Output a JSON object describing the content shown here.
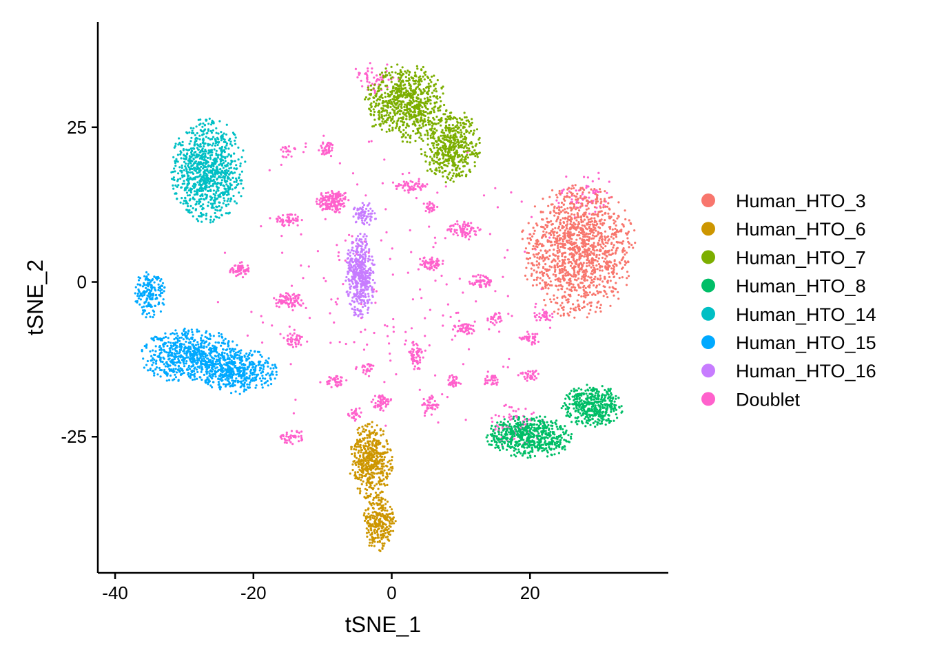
{
  "chart_data": {
    "type": "scatter",
    "title": "",
    "xlabel": "tSNE_1",
    "ylabel": "tSNE_2",
    "xlim": [
      -42.5,
      40
    ],
    "ylim": [
      -47,
      42
    ],
    "x_ticks": [
      {
        "value": -40,
        "label": "-40"
      },
      {
        "value": -20,
        "label": "-20"
      },
      {
        "value": 0,
        "label": "0"
      },
      {
        "value": 20,
        "label": "20"
      }
    ],
    "y_ticks": [
      {
        "value": 25,
        "label": "25"
      },
      {
        "value": 0,
        "label": "0"
      },
      {
        "value": -25,
        "label": "-25"
      }
    ],
    "grid": false,
    "legend_position": "right",
    "series": [
      {
        "name": "Human_HTO_3",
        "color": "#F8766D",
        "clusters": [
          {
            "cx": 27,
            "cy": 5,
            "rx": 8.5,
            "ry": 11,
            "n": 1300
          }
        ]
      },
      {
        "name": "Human_HTO_6",
        "color": "#CD9600",
        "clusters": [
          {
            "cx": -3,
            "cy": -29,
            "rx": 3.2,
            "ry": 6.5,
            "n": 480
          },
          {
            "cx": -1.8,
            "cy": -39,
            "rx": 2.5,
            "ry": 4.5,
            "n": 260
          }
        ]
      },
      {
        "name": "Human_HTO_7",
        "color": "#7CAE00",
        "clusters": [
          {
            "cx": 2,
            "cy": 29,
            "rx": 6,
            "ry": 6.5,
            "n": 700
          },
          {
            "cx": 8.5,
            "cy": 22,
            "rx": 4.5,
            "ry": 6,
            "n": 500
          }
        ]
      },
      {
        "name": "Human_HTO_8",
        "color": "#00BE67",
        "clusters": [
          {
            "cx": 20,
            "cy": -25,
            "rx": 6.5,
            "ry": 3.5,
            "n": 550
          },
          {
            "cx": 29,
            "cy": -20,
            "rx": 4.5,
            "ry": 3.5,
            "n": 420
          }
        ]
      },
      {
        "name": "Human_HTO_14",
        "color": "#00BFC4",
        "clusters": [
          {
            "cx": -26.5,
            "cy": 18,
            "rx": 5.5,
            "ry": 8.5,
            "n": 900
          }
        ]
      },
      {
        "name": "Human_HTO_15",
        "color": "#00A9FF",
        "clusters": [
          {
            "cx": -35,
            "cy": -2,
            "rx": 2.3,
            "ry": 4,
            "n": 170
          },
          {
            "cx": -29,
            "cy": -12,
            "rx": 7.5,
            "ry": 4.5,
            "n": 700
          },
          {
            "cx": -22,
            "cy": -14.5,
            "rx": 5.5,
            "ry": 3.8,
            "n": 400
          }
        ]
      },
      {
        "name": "Human_HTO_16",
        "color": "#C77CFF",
        "clusters": [
          {
            "cx": -4.5,
            "cy": 1,
            "rx": 2.2,
            "ry": 7,
            "n": 450
          },
          {
            "cx": -4,
            "cy": 11,
            "rx": 2,
            "ry": 2,
            "n": 70
          }
        ]
      },
      {
        "name": "Doublet",
        "color": "#FF61CC",
        "clusters": [
          {
            "cx": -8.5,
            "cy": 13,
            "rx": 2.5,
            "ry": 2,
            "n": 150
          },
          {
            "cx": -15,
            "cy": 10,
            "rx": 2,
            "ry": 1.2,
            "n": 50
          },
          {
            "cx": -22,
            "cy": 2,
            "rx": 1.5,
            "ry": 1.3,
            "n": 60
          },
          {
            "cx": -15,
            "cy": -3,
            "rx": 2.5,
            "ry": 1.3,
            "n": 80
          },
          {
            "cx": -9.5,
            "cy": 21.5,
            "rx": 1.2,
            "ry": 1.5,
            "n": 40
          },
          {
            "cx": -15,
            "cy": 21,
            "rx": 1.2,
            "ry": 1,
            "n": 20
          },
          {
            "cx": -14,
            "cy": -9.5,
            "rx": 2,
            "ry": 1.2,
            "n": 40
          },
          {
            "cx": -8,
            "cy": -16,
            "rx": 1.5,
            "ry": 1.2,
            "n": 40
          },
          {
            "cx": -3.5,
            "cy": -14,
            "rx": 1,
            "ry": 1.3,
            "n": 25
          },
          {
            "cx": -14.5,
            "cy": -25,
            "rx": 2,
            "ry": 1.2,
            "n": 40
          },
          {
            "cx": -1.5,
            "cy": -19.5,
            "rx": 1.5,
            "ry": 1.5,
            "n": 50
          },
          {
            "cx": 3.5,
            "cy": -12,
            "rx": 1.5,
            "ry": 2.5,
            "n": 55
          },
          {
            "cx": 5.5,
            "cy": -20,
            "rx": 1.5,
            "ry": 2,
            "n": 45
          },
          {
            "cx": 5.5,
            "cy": 3,
            "rx": 2.2,
            "ry": 1.2,
            "n": 55
          },
          {
            "cx": 10.5,
            "cy": 8.5,
            "rx": 2.5,
            "ry": 1.5,
            "n": 70
          },
          {
            "cx": 13,
            "cy": 0,
            "rx": 2,
            "ry": 1.3,
            "n": 55
          },
          {
            "cx": 10.5,
            "cy": -7.5,
            "rx": 2,
            "ry": 1,
            "n": 45
          },
          {
            "cx": 9,
            "cy": -16,
            "rx": 1.2,
            "ry": 1,
            "n": 30
          },
          {
            "cx": 14.5,
            "cy": -16,
            "rx": 1.2,
            "ry": 1,
            "n": 30
          },
          {
            "cx": 20,
            "cy": -15,
            "rx": 1.5,
            "ry": 1,
            "n": 30
          },
          {
            "cx": 20,
            "cy": -9,
            "rx": 1.5,
            "ry": 1.2,
            "n": 35
          },
          {
            "cx": 22,
            "cy": -5.5,
            "rx": 1.5,
            "ry": 1.2,
            "n": 35
          },
          {
            "cx": 3,
            "cy": 15.5,
            "rx": 2.5,
            "ry": 1.2,
            "n": 55
          },
          {
            "cx": 5.5,
            "cy": 12,
            "rx": 1.2,
            "ry": 1,
            "n": 25
          },
          {
            "cx": -2.5,
            "cy": 33,
            "rx": 3.5,
            "ry": 2.5,
            "n": 55
          },
          {
            "cx": -5.5,
            "cy": -21.5,
            "rx": 1.2,
            "ry": 1.2,
            "n": 25
          },
          {
            "cx": 28,
            "cy": 14,
            "rx": 5,
            "ry": 4,
            "n": 70
          },
          {
            "cx": 18,
            "cy": -23,
            "rx": 4,
            "ry": 4,
            "n": 80
          },
          {
            "cx": 15,
            "cy": -6,
            "rx": 1.2,
            "ry": 1.2,
            "n": 25
          },
          {
            "cx": 0,
            "cy": 0,
            "rx": 26,
            "ry": 26,
            "n": 200
          }
        ]
      }
    ]
  }
}
